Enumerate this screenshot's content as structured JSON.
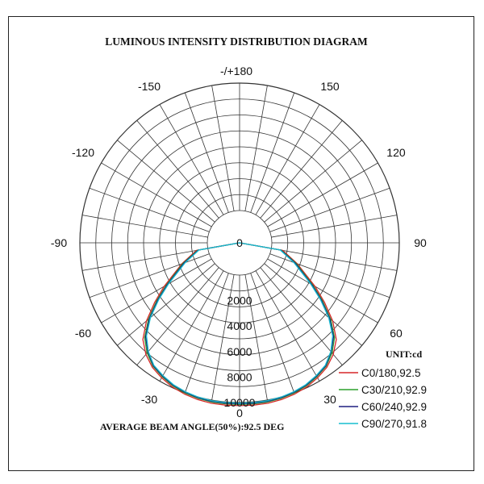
{
  "chart_data": {
    "type": "polar",
    "title": "LUMINOUS INTENSITY DISTRIBUTION DIAGRAM",
    "unit_label": "UNIT:cd",
    "footer": "AVERAGE BEAM ANGLE(50%):92.5 DEG",
    "radial_axis": {
      "min": 0,
      "max": 10000,
      "ticks": [
        0,
        2000,
        4000,
        6000,
        8000,
        10000
      ]
    },
    "angle_labels": [
      {
        "angle": 180,
        "text": "-/+180"
      },
      {
        "angle": 150,
        "text": "150"
      },
      {
        "angle": -150,
        "text": "-150"
      },
      {
        "angle": 120,
        "text": "120"
      },
      {
        "angle": -120,
        "text": "-120"
      },
      {
        "angle": 90,
        "text": "90"
      },
      {
        "angle": -90,
        "text": "-90"
      },
      {
        "angle": 60,
        "text": "60"
      },
      {
        "angle": -60,
        "text": "-60"
      },
      {
        "angle": 30,
        "text": "30"
      },
      {
        "angle": -30,
        "text": "-30"
      },
      {
        "angle": 0,
        "text": "0"
      }
    ],
    "angles": [
      -90,
      -80,
      -70,
      -60,
      -55,
      -50,
      -45,
      -40,
      -35,
      -30,
      -25,
      -20,
      -15,
      -10,
      -5,
      0,
      5,
      10,
      15,
      20,
      25,
      30,
      35,
      40,
      45,
      50,
      55,
      60,
      70,
      80,
      90
    ],
    "series": [
      {
        "name": "C0/180,92.5",
        "color": "#d62728",
        "values": [
          0,
          900,
          2300,
          4300,
          5600,
          7000,
          8200,
          8900,
          9400,
          9700,
          9950,
          10100,
          10200,
          10250,
          10250,
          10250,
          10250,
          10250,
          10200,
          10100,
          9950,
          9700,
          9400,
          8900,
          8200,
          7000,
          5600,
          4300,
          2300,
          900,
          0
        ]
      },
      {
        "name": "C30/210,92.9",
        "color": "#2ca02c",
        "values": [
          0,
          800,
          2200,
          4100,
          5400,
          6800,
          8000,
          8750,
          9300,
          9600,
          9850,
          10000,
          10100,
          10150,
          10150,
          10150,
          10150,
          10150,
          10100,
          10000,
          9850,
          9600,
          9300,
          8750,
          8000,
          6800,
          5400,
          4100,
          2200,
          800,
          0
        ]
      },
      {
        "name": "C60/240,92.9",
        "color": "#1f1f80",
        "values": [
          0,
          750,
          2100,
          4000,
          5300,
          6700,
          7900,
          8650,
          9250,
          9550,
          9800,
          9950,
          10050,
          10100,
          10100,
          10100,
          10100,
          10100,
          10050,
          9950,
          9800,
          9550,
          9250,
          8650,
          7900,
          6700,
          5300,
          4000,
          2100,
          750,
          0
        ]
      },
      {
        "name": "C90/270,91.8",
        "color": "#17becf",
        "values": [
          0,
          700,
          2000,
          3900,
          5200,
          6600,
          7800,
          8600,
          9200,
          9500,
          9750,
          9900,
          10000,
          10050,
          10050,
          10050,
          10050,
          10050,
          10000,
          9900,
          9750,
          9500,
          9200,
          8600,
          7800,
          6600,
          5200,
          3900,
          2000,
          700,
          0
        ]
      }
    ]
  }
}
